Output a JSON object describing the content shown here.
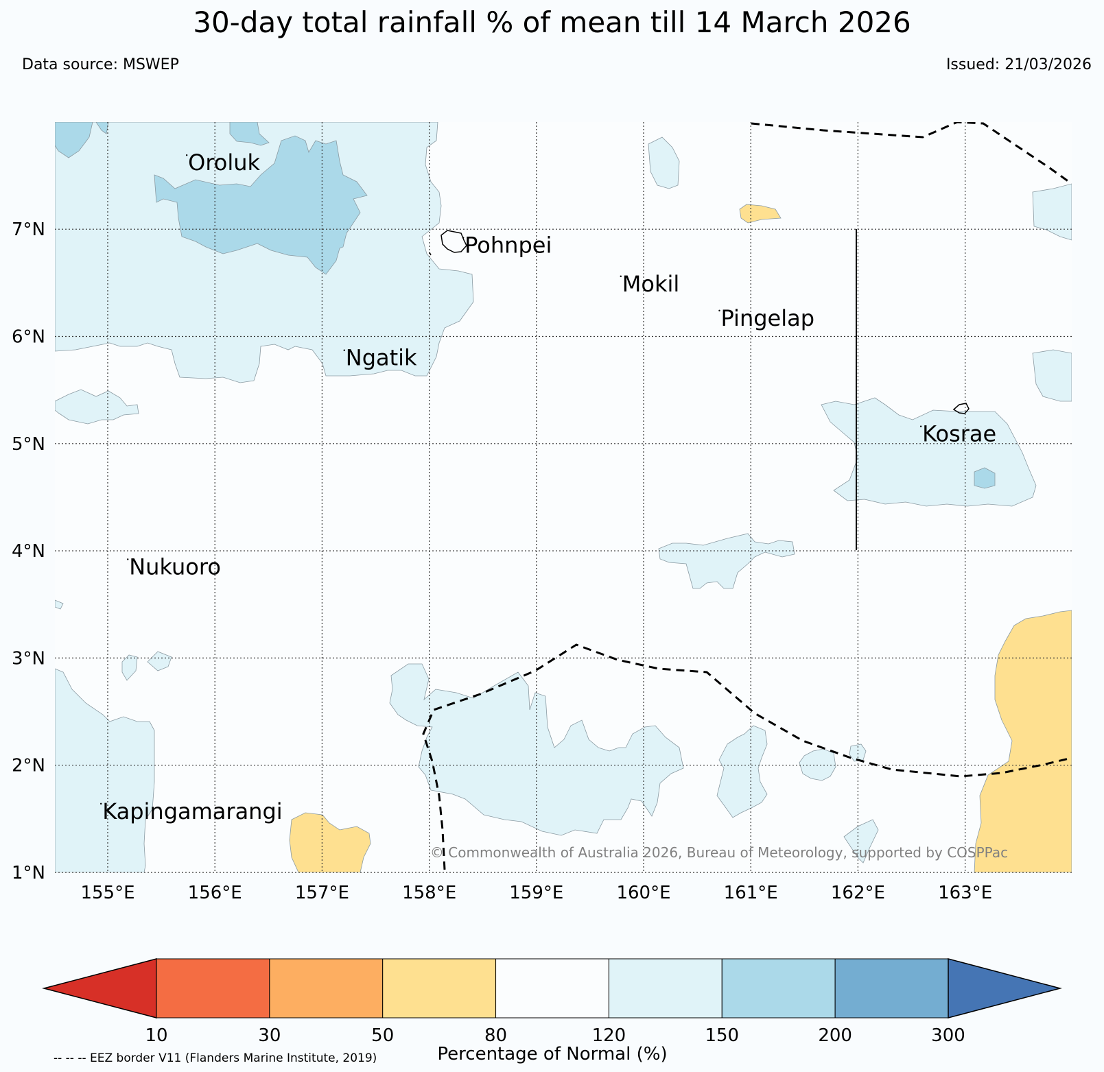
{
  "title": "30-day total rainfall % of mean till 14 March 2026",
  "data_source": "Data source: MSWEP",
  "issued": "Issued: 21/03/2026",
  "map": {
    "lon_range": [
      154.5,
      164.0
    ],
    "lat_range": [
      1.0,
      8.0
    ],
    "x_ticks": [
      {
        "lon": 155,
        "label": "155°E"
      },
      {
        "lon": 156,
        "label": "156°E"
      },
      {
        "lon": 157,
        "label": "157°E"
      },
      {
        "lon": 158,
        "label": "158°E"
      },
      {
        "lon": 159,
        "label": "159°E"
      },
      {
        "lon": 160,
        "label": "160°E"
      },
      {
        "lon": 161,
        "label": "161°E"
      },
      {
        "lon": 162,
        "label": "162°E"
      },
      {
        "lon": 163,
        "label": "163°E"
      }
    ],
    "y_ticks": [
      {
        "lat": 1,
        "label": "1°N"
      },
      {
        "lat": 2,
        "label": "2°N"
      },
      {
        "lat": 3,
        "label": "3°N"
      },
      {
        "lat": 4,
        "label": "4°N"
      },
      {
        "lat": 5,
        "label": "5°N"
      },
      {
        "lat": 6,
        "label": "6°N"
      },
      {
        "lat": 7,
        "label": "7°N"
      }
    ],
    "places": [
      {
        "name": "Oroluk",
        "lon": 155.75,
        "lat": 7.55
      },
      {
        "name": "Pohnpei",
        "lon": 158.33,
        "lat": 6.78
      },
      {
        "name": "Mokil",
        "lon": 159.8,
        "lat": 6.42
      },
      {
        "name": "Pingelap",
        "lon": 160.72,
        "lat": 6.1
      },
      {
        "name": "Ngatik",
        "lon": 157.22,
        "lat": 5.73
      },
      {
        "name": "Kosrae",
        "lon": 162.6,
        "lat": 5.02
      },
      {
        "name": "Nukuoro",
        "lon": 155.2,
        "lat": 3.78
      },
      {
        "name": "Kapingamarangi",
        "lon": 154.95,
        "lat": 1.5
      }
    ],
    "copyright": "© Commonwealth of Australia 2026, Bureau of Meteorology, supported by COSPPac",
    "eez_note": "-- -- -- EEZ border V11 (Flanders Marine Institute, 2019)"
  },
  "colorbar": {
    "title": "Percentage of Normal (%)",
    "ticks": [
      "10",
      "30",
      "50",
      "80",
      "120",
      "150",
      "200",
      "300"
    ],
    "colors": [
      "#d73027",
      "#f46d43",
      "#fdae61",
      "#fee090",
      "#fbfdfe",
      "#e0f3f8",
      "#abd9e9",
      "#74add1",
      "#4575b4"
    ]
  }
}
